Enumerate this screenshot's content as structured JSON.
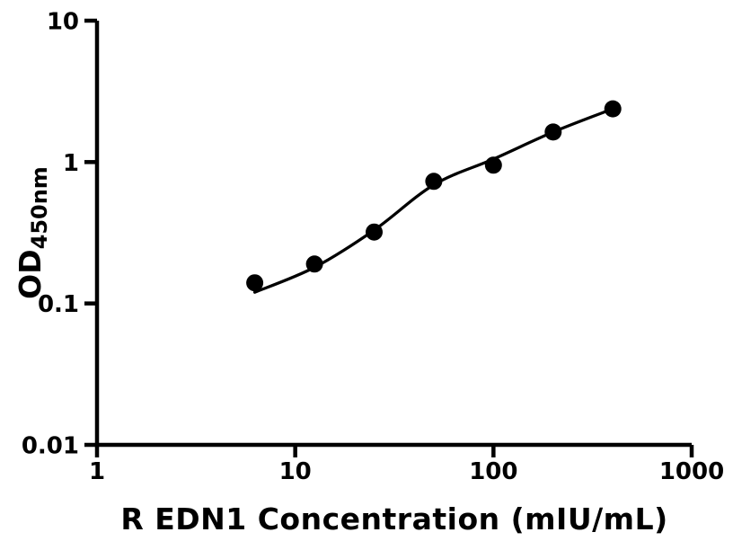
{
  "figure": {
    "description": "ELISA standard curve plot, black on white",
    "background_color": "#ffffff",
    "draw_color": "#000000"
  },
  "chart_data": {
    "type": "scatter",
    "title": "",
    "xlabel": "R EDN1 Concentration (mIU/mL)",
    "ylabel": "OD",
    "ylabel_sub": "450nm",
    "x_scale": "log",
    "y_scale": "log",
    "xlim": [
      1,
      1000
    ],
    "ylim": [
      0.01,
      10
    ],
    "grid": false,
    "legend": false,
    "x_ticks": [
      {
        "value": 1,
        "label": "1"
      },
      {
        "value": 10,
        "label": "10"
      },
      {
        "value": 100,
        "label": "100"
      },
      {
        "value": 1000,
        "label": "1000"
      }
    ],
    "y_ticks": [
      {
        "value": 10,
        "label": "10"
      },
      {
        "value": 1,
        "label": "1"
      },
      {
        "value": 0.1,
        "label": "0.1"
      },
      {
        "value": 0.01,
        "label": "0.01"
      }
    ],
    "series": [
      {
        "name": "standard-points",
        "type": "scatter",
        "marker_shape": "circle",
        "marker_color": "#000000",
        "marker_radius": 9.5,
        "x": [
          6.25,
          12.5,
          25,
          50,
          100,
          200,
          400
        ],
        "y": [
          0.14,
          0.19,
          0.32,
          0.73,
          0.95,
          1.63,
          2.38
        ]
      },
      {
        "name": "fit-curve",
        "type": "line",
        "line_color": "#000000",
        "line_width": 3.3,
        "x": [
          6.25,
          12.5,
          25,
          50,
          100,
          200,
          400
        ],
        "y": [
          0.12,
          0.18,
          0.33,
          0.69,
          1.05,
          1.63,
          2.38
        ]
      }
    ]
  }
}
